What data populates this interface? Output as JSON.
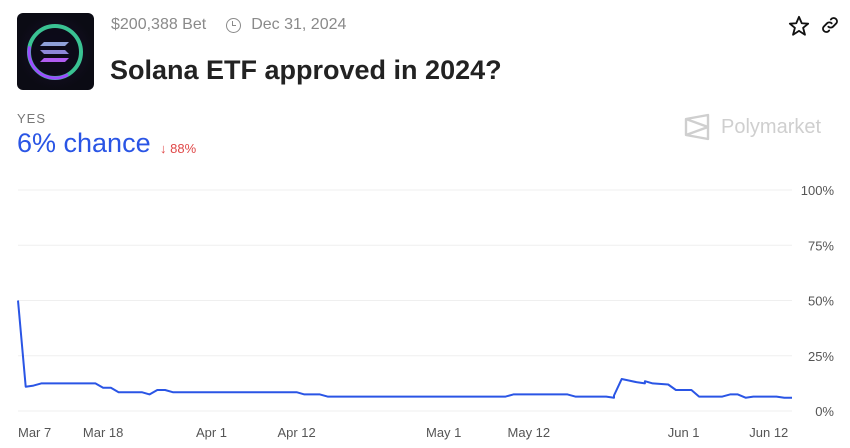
{
  "header": {
    "volume": "$200,388 Bet",
    "end_date": "Dec 31, 2024",
    "title": "Solana ETF approved in 2024?",
    "icons": [
      "star-icon",
      "link-icon",
      "clock-icon"
    ]
  },
  "outcome": {
    "label": "YES",
    "chance": "6% chance",
    "change": "88%",
    "change_direction": "down",
    "change_color": "#e04848",
    "accent": "#2a55e5"
  },
  "brand": {
    "name": "Polymarket"
  },
  "chart_data": {
    "type": "line",
    "grid": true,
    "xlim": [
      "2024-03-07",
      "2024-06-15"
    ],
    "ylim": [
      0,
      100
    ],
    "y_ticks": [
      "100%",
      "75%",
      "50%",
      "25%",
      "0%"
    ],
    "y_tick_values": [
      100,
      75,
      50,
      25,
      0
    ],
    "x_ticks": [
      "Mar 7",
      "Mar 18",
      "Apr 1",
      "Apr 12",
      "May 1",
      "May 12",
      "Jun 1",
      "Jun 12"
    ],
    "x_tick_dates": [
      "2024-03-07",
      "2024-03-18",
      "2024-04-01",
      "2024-04-12",
      "2024-05-01",
      "2024-05-12",
      "2024-06-01",
      "2024-06-12"
    ],
    "series": [
      {
        "color": "#2a55e5",
        "points": [
          [
            "2024-03-07",
            50
          ],
          [
            "2024-03-08",
            11
          ],
          [
            "2024-03-09",
            11.5
          ],
          [
            "2024-03-10",
            12.5
          ],
          [
            "2024-03-17",
            12.5
          ],
          [
            "2024-03-18",
            10.5
          ],
          [
            "2024-03-19",
            10.5
          ],
          [
            "2024-03-20",
            8.5
          ],
          [
            "2024-03-23",
            8.5
          ],
          [
            "2024-03-24",
            7.5
          ],
          [
            "2024-03-25",
            9.5
          ],
          [
            "2024-03-26",
            9.5
          ],
          [
            "2024-03-27",
            8.5
          ],
          [
            "2024-04-12",
            8.5
          ],
          [
            "2024-04-13",
            7.5
          ],
          [
            "2024-04-15",
            7.5
          ],
          [
            "2024-04-16",
            6.5
          ],
          [
            "2024-05-09",
            6.5
          ],
          [
            "2024-05-10",
            7.5
          ],
          [
            "2024-05-17",
            7.5
          ],
          [
            "2024-05-18",
            6.5
          ],
          [
            "2024-05-22",
            6.5
          ],
          [
            "2024-05-23",
            6
          ],
          [
            "2024-05-23",
            7
          ],
          [
            "2024-05-24",
            14.5
          ],
          [
            "2024-05-26",
            13
          ],
          [
            "2024-05-27",
            12.5
          ],
          [
            "2024-05-27",
            13.5
          ],
          [
            "2024-05-28",
            12.5
          ],
          [
            "2024-05-30",
            12
          ],
          [
            "2024-05-31",
            9.5
          ],
          [
            "2024-06-02",
            9.5
          ],
          [
            "2024-06-03",
            6.5
          ],
          [
            "2024-06-06",
            6.5
          ],
          [
            "2024-06-07",
            7.5
          ],
          [
            "2024-06-08",
            7.5
          ],
          [
            "2024-06-09",
            6
          ],
          [
            "2024-06-10",
            6.5
          ],
          [
            "2024-06-13",
            6.5
          ],
          [
            "2024-06-14",
            6
          ],
          [
            "2024-06-15",
            6
          ]
        ]
      }
    ]
  }
}
